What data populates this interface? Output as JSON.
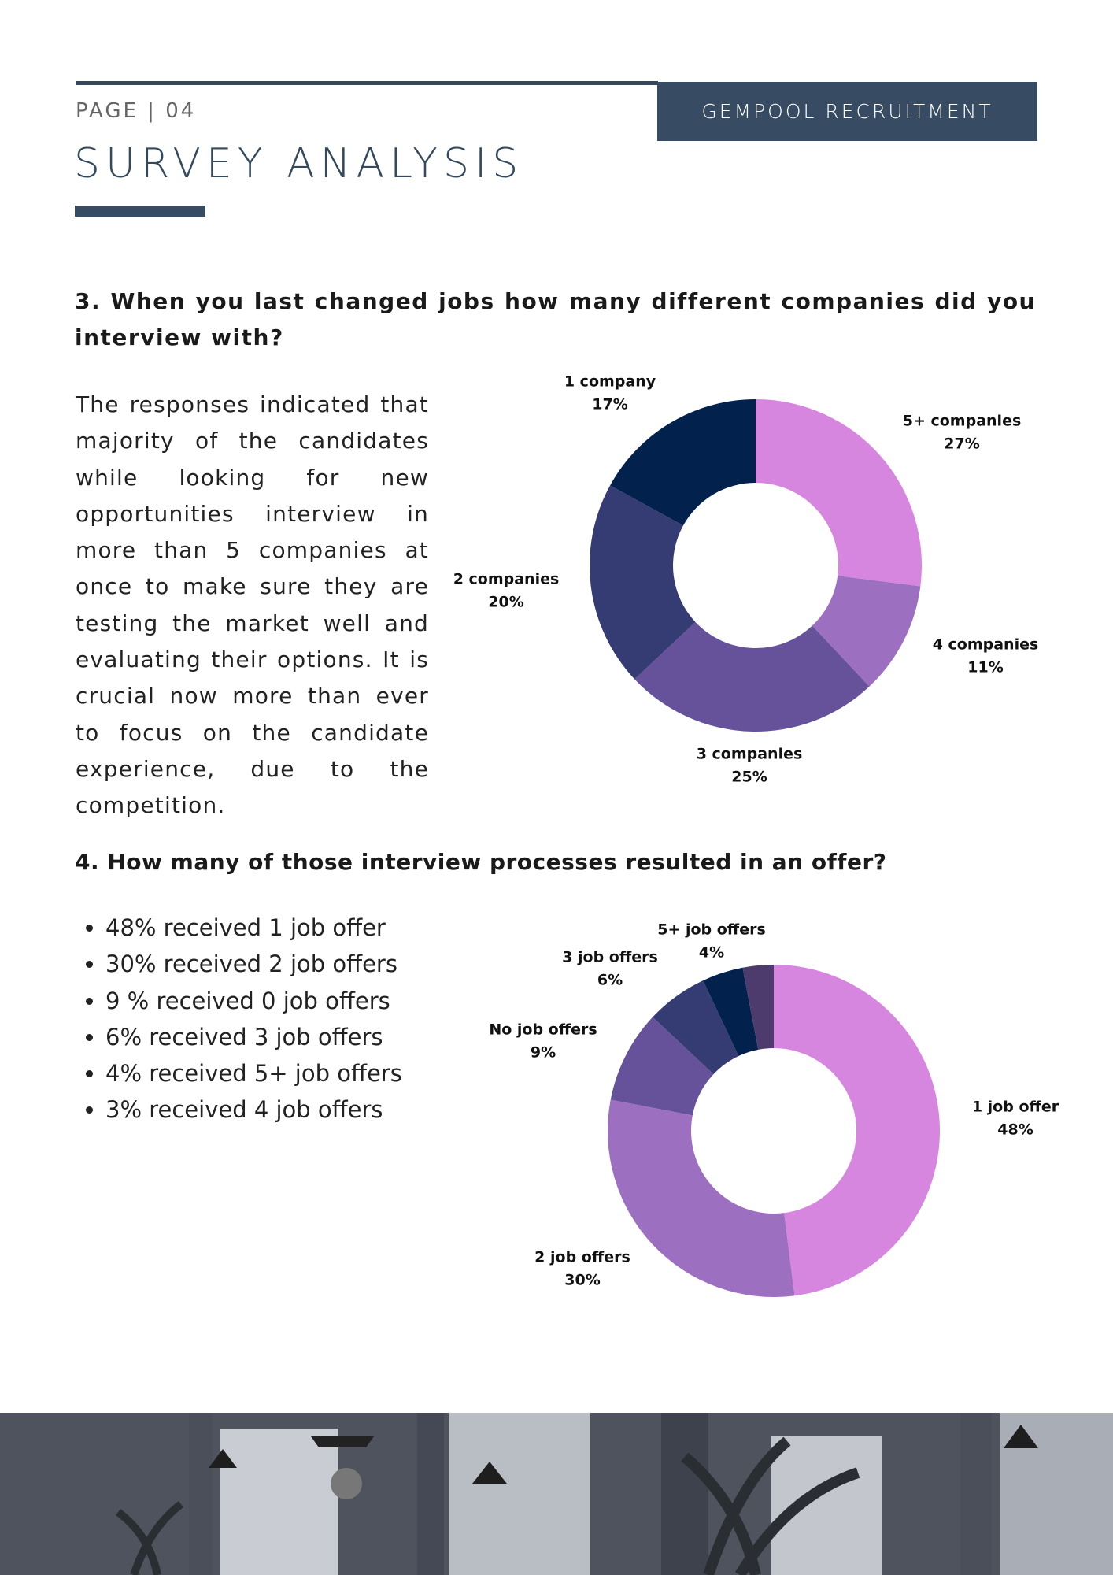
{
  "header": {
    "page": "PAGE | 04",
    "company": "GEMPOOL RECRUITMENT",
    "title": "SURVEY ANALYSIS"
  },
  "question_3": {
    "title": "3. When you last changed jobs how many different companies did you interview with?",
    "text": "The responses indicated that majority of the candidates while looking for new opportunities interview in more than 5 companies at once to make sure they are testing the market well and evaluating their options. It is crucial now more than ever to focus on the candidate experience, due to the competition."
  },
  "question_4": {
    "title": "4. How many of those interview processes resulted in an offer?",
    "bullets": [
      "48% received 1 job offer",
      "30% received 2 job offers",
      "9 % received 0 job offers",
      "6% received 3 job offers",
      "4% received 5+ job offers",
      "3% received 4 job offers"
    ]
  },
  "chart_data": [
    {
      "type": "donut",
      "categories": [
        "5+ companies",
        "4 companies",
        "3 companies",
        "2 companies",
        "1 company"
      ],
      "values": [
        27,
        11,
        25,
        20,
        17
      ],
      "value_labels": [
        "27%",
        "11%",
        "25%",
        "20%",
        "17%"
      ],
      "colors": [
        "#d786e0",
        "#9d6fc1",
        "#66529a",
        "#353b73",
        "#03214d"
      ]
    },
    {
      "type": "donut",
      "categories": [
        "1 job offer",
        "2 job offers",
        "No job offers",
        "3 job offers",
        "5+ job offers",
        null
      ],
      "values": [
        48,
        30,
        9,
        6,
        4,
        3
      ],
      "value_labels": [
        "48%",
        "30%",
        "9%",
        "6%",
        "4%",
        null
      ],
      "colors": [
        "#d786e0",
        "#9d6fc1",
        "#66529a",
        "#353b73",
        "#03214d",
        "#4e3b6e"
      ]
    }
  ]
}
